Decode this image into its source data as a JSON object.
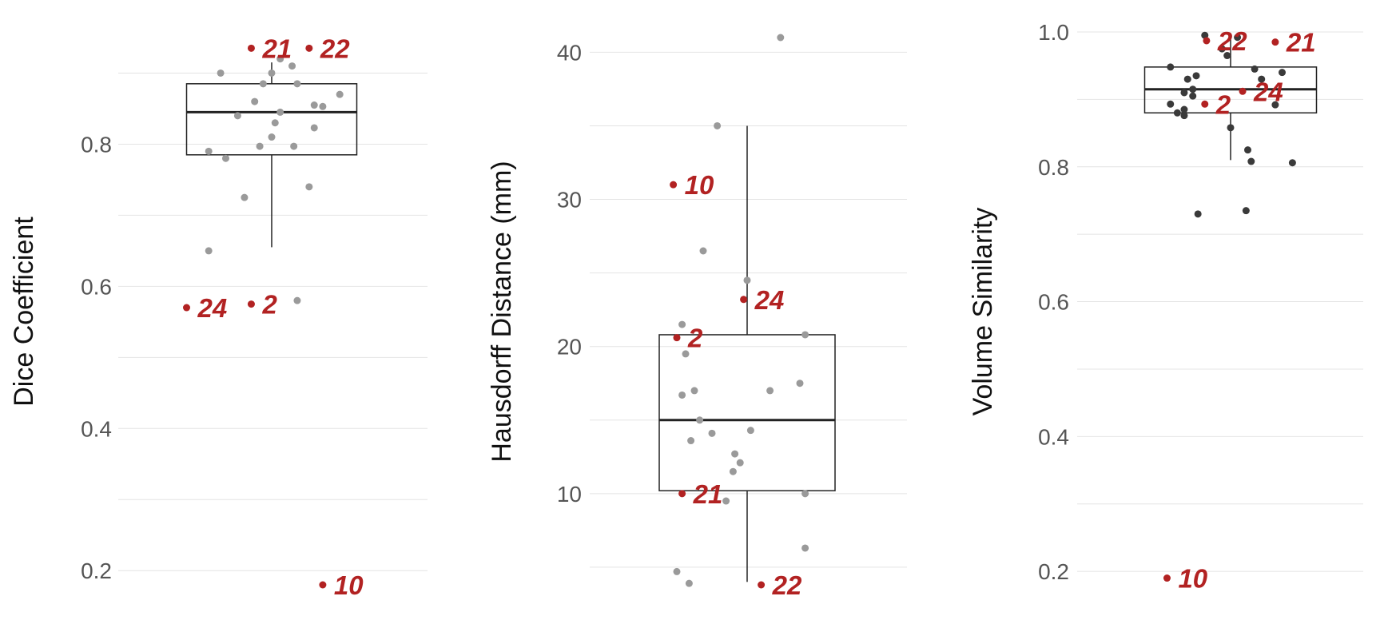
{
  "colors": {
    "highlight": "#b22222",
    "point_light": "#9a9a9a",
    "point_dark": "#3a3a3a"
  },
  "chart_data": [
    {
      "type": "boxplot",
      "ylabel": "Dice Coefficient",
      "ylim": [
        0.18,
        0.95
      ],
      "yticks": [
        0.2,
        0.4,
        0.6,
        0.8
      ],
      "grid": true,
      "point_style": "light",
      "box": {
        "q1": 0.785,
        "median": 0.845,
        "q3": 0.885,
        "lower_whisker": 0.655,
        "upper_whisker": 0.915
      },
      "points": [
        {
          "jx": -0.3,
          "y": 0.9
        },
        {
          "jx": 0.05,
          "y": 0.92
        },
        {
          "jx": 0.12,
          "y": 0.91
        },
        {
          "jx": 0.0,
          "y": 0.9
        },
        {
          "jx": -0.05,
          "y": 0.885
        },
        {
          "jx": 0.15,
          "y": 0.885
        },
        {
          "jx": 0.4,
          "y": 0.87
        },
        {
          "jx": -0.1,
          "y": 0.86
        },
        {
          "jx": 0.25,
          "y": 0.855
        },
        {
          "jx": 0.3,
          "y": 0.853
        },
        {
          "jx": 0.05,
          "y": 0.845
        },
        {
          "jx": -0.2,
          "y": 0.84
        },
        {
          "jx": 0.02,
          "y": 0.83
        },
        {
          "jx": 0.25,
          "y": 0.823
        },
        {
          "jx": 0.0,
          "y": 0.81
        },
        {
          "jx": -0.07,
          "y": 0.797
        },
        {
          "jx": 0.13,
          "y": 0.797
        },
        {
          "jx": -0.37,
          "y": 0.79
        },
        {
          "jx": -0.27,
          "y": 0.78
        },
        {
          "jx": 0.22,
          "y": 0.74
        },
        {
          "jx": -0.16,
          "y": 0.725
        },
        {
          "jx": -0.37,
          "y": 0.65
        },
        {
          "jx": 0.15,
          "y": 0.58
        }
      ],
      "highlights": [
        {
          "label": "21",
          "jx": -0.12,
          "y": 0.935
        },
        {
          "label": "22",
          "jx": 0.22,
          "y": 0.935
        },
        {
          "label": "24",
          "jx": -0.5,
          "y": 0.57
        },
        {
          "label": "2",
          "jx": -0.12,
          "y": 0.575
        },
        {
          "label": "10",
          "jx": 0.3,
          "y": 0.18
        }
      ]
    },
    {
      "type": "boxplot",
      "ylabel": "Hausdorff Distance (mm)",
      "ylim": [
        3.8,
        41.0
      ],
      "yticks": [
        10,
        20,
        30,
        40
      ],
      "grid": true,
      "point_style": "light",
      "box": {
        "q1": 10.2,
        "median": 15.0,
        "q3": 20.8,
        "lower_whisker": 4.0,
        "upper_whisker": 35.0
      },
      "points": [
        {
          "jx": 0.19,
          "y": 41.0
        },
        {
          "jx": -0.17,
          "y": 35.0
        },
        {
          "jx": -0.25,
          "y": 26.5
        },
        {
          "jx": 0.0,
          "y": 24.5
        },
        {
          "jx": -0.37,
          "y": 21.5
        },
        {
          "jx": 0.33,
          "y": 20.8
        },
        {
          "jx": -0.35,
          "y": 19.5
        },
        {
          "jx": 0.3,
          "y": 17.5
        },
        {
          "jx": -0.3,
          "y": 17.0
        },
        {
          "jx": 0.13,
          "y": 17.0
        },
        {
          "jx": -0.37,
          "y": 16.7
        },
        {
          "jx": -0.27,
          "y": 15.0
        },
        {
          "jx": 0.02,
          "y": 14.3
        },
        {
          "jx": -0.2,
          "y": 14.1
        },
        {
          "jx": -0.32,
          "y": 13.6
        },
        {
          "jx": -0.07,
          "y": 12.7
        },
        {
          "jx": -0.04,
          "y": 12.1
        },
        {
          "jx": -0.08,
          "y": 11.5
        },
        {
          "jx": 0.33,
          "y": 10.0
        },
        {
          "jx": -0.12,
          "y": 9.5
        },
        {
          "jx": 0.33,
          "y": 6.3
        },
        {
          "jx": -0.4,
          "y": 4.7
        },
        {
          "jx": -0.33,
          "y": 3.9
        }
      ],
      "highlights": [
        {
          "label": "10",
          "jx": -0.42,
          "y": 31.0
        },
        {
          "label": "24",
          "jx": -0.02,
          "y": 23.2
        },
        {
          "label": "2",
          "jx": -0.4,
          "y": 20.6
        },
        {
          "label": "21",
          "jx": -0.37,
          "y": 10.0
        },
        {
          "label": "22",
          "jx": 0.08,
          "y": 3.8
        }
      ]
    },
    {
      "type": "boxplot",
      "ylabel": "Volume Similarity",
      "ylim": [
        0.18,
        1.0
      ],
      "yticks": [
        0.2,
        0.4,
        0.6,
        0.8,
        1.0
      ],
      "grid": true,
      "point_style": "dark",
      "box": {
        "q1": 0.88,
        "median": 0.915,
        "q3": 0.948,
        "lower_whisker": 0.81,
        "upper_whisker": 0.99
      },
      "points": [
        {
          "jx": -0.15,
          "y": 0.995
        },
        {
          "jx": 0.04,
          "y": 0.992
        },
        {
          "jx": -0.05,
          "y": 0.975
        },
        {
          "jx": -0.02,
          "y": 0.965
        },
        {
          "jx": -0.35,
          "y": 0.948
        },
        {
          "jx": 0.14,
          "y": 0.945
        },
        {
          "jx": 0.3,
          "y": 0.94
        },
        {
          "jx": -0.2,
          "y": 0.935
        },
        {
          "jx": -0.25,
          "y": 0.93
        },
        {
          "jx": 0.18,
          "y": 0.93
        },
        {
          "jx": -0.22,
          "y": 0.915
        },
        {
          "jx": -0.27,
          "y": 0.91
        },
        {
          "jx": -0.22,
          "y": 0.905
        },
        {
          "jx": -0.35,
          "y": 0.893
        },
        {
          "jx": 0.26,
          "y": 0.892
        },
        {
          "jx": -0.27,
          "y": 0.885
        },
        {
          "jx": -0.31,
          "y": 0.88
        },
        {
          "jx": -0.27,
          "y": 0.876
        },
        {
          "jx": 0.0,
          "y": 0.858
        },
        {
          "jx": 0.1,
          "y": 0.825
        },
        {
          "jx": 0.12,
          "y": 0.808
        },
        {
          "jx": 0.36,
          "y": 0.806
        },
        {
          "jx": 0.09,
          "y": 0.735
        },
        {
          "jx": -0.19,
          "y": 0.73
        }
      ],
      "highlights": [
        {
          "label": "22",
          "jx": -0.14,
          "y": 0.987
        },
        {
          "label": "21",
          "jx": 0.26,
          "y": 0.985
        },
        {
          "label": "24",
          "jx": 0.07,
          "y": 0.912
        },
        {
          "label": "2",
          "jx": -0.15,
          "y": 0.893
        },
        {
          "label": "10",
          "jx": -0.37,
          "y": 0.19
        }
      ]
    }
  ]
}
